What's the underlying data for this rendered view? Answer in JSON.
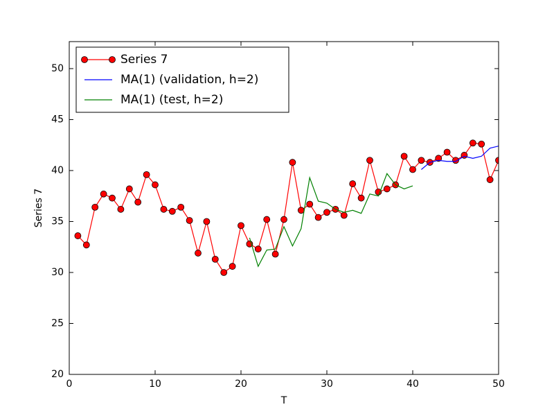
{
  "chart_data": {
    "type": "line",
    "xlabel": "T",
    "ylabel": "Series 7",
    "xlim": [
      0,
      50
    ],
    "xticks": [
      0,
      10,
      20,
      30,
      40,
      50
    ],
    "ylim": [
      20,
      52.65
    ],
    "yticks": [
      20,
      25,
      30,
      35,
      40,
      45,
      50
    ],
    "legend": "upper left",
    "series": [
      {
        "name": "Series 7",
        "color": "#ff0000",
        "marker": "o",
        "x": [
          1,
          2,
          3,
          4,
          5,
          6,
          7,
          8,
          9,
          10,
          11,
          12,
          13,
          14,
          15,
          16,
          17,
          18,
          19,
          20,
          21,
          22,
          23,
          24,
          25,
          26,
          27,
          28,
          29,
          30,
          31,
          32,
          33,
          34,
          35,
          36,
          37,
          38,
          39,
          40,
          41,
          42,
          43,
          44,
          45,
          46,
          47,
          48,
          49,
          50
        ],
        "values": [
          33.6,
          32.7,
          36.4,
          37.7,
          37.3,
          36.2,
          38.2,
          36.9,
          39.6,
          38.6,
          36.2,
          36.0,
          36.4,
          35.1,
          31.9,
          35.0,
          31.3,
          30.0,
          30.6,
          34.6,
          32.8,
          32.3,
          35.2,
          31.8,
          35.2,
          40.8,
          36.1,
          36.7,
          35.4,
          35.9,
          36.2,
          35.6,
          38.7,
          37.3,
          41.0,
          37.9,
          38.2,
          38.6,
          41.4,
          40.1,
          41.0,
          40.8,
          41.2,
          41.8,
          41.0,
          41.5,
          42.7,
          42.6,
          39.1,
          41.0
        ]
      },
      {
        "name": "MA(1) (validation, h=2)",
        "color": "#0000ff",
        "x": [
          41,
          42,
          43,
          44,
          45,
          46,
          47,
          48,
          49,
          50
        ],
        "values": [
          40.1,
          40.8,
          41.0,
          40.9,
          40.9,
          41.4,
          41.2,
          41.4,
          42.2,
          42.4
        ]
      },
      {
        "name": "MA(1) (test, h=2)",
        "color": "#008000",
        "x": [
          21,
          22,
          23,
          24,
          25,
          26,
          27,
          28,
          29,
          30,
          31,
          32,
          33,
          34,
          35,
          36,
          37,
          38,
          39,
          40
        ],
        "values": [
          33.4,
          30.6,
          32.2,
          32.3,
          34.5,
          32.6,
          34.3,
          39.3,
          37.0,
          36.8,
          36.2,
          35.9,
          36.1,
          35.8,
          37.7,
          37.5,
          39.7,
          38.6,
          38.2,
          38.5
        ]
      }
    ]
  }
}
